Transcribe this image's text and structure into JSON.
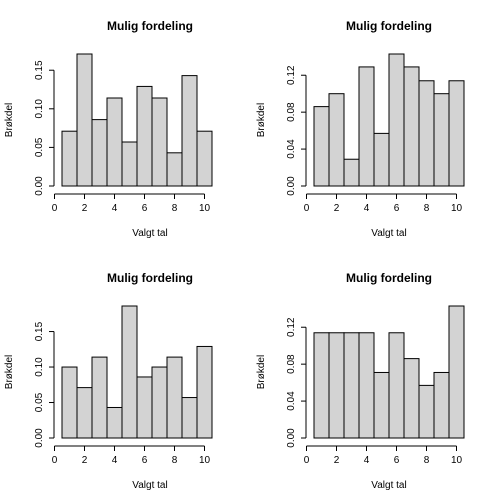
{
  "chart_data": [
    {
      "type": "bar",
      "title": "Mulig fordeling",
      "xlabel": "Valgt tal",
      "ylabel": "Brøkdel",
      "x_bin_edges": [
        0.5,
        1.5,
        2.5,
        3.5,
        4.5,
        5.5,
        6.5,
        7.5,
        8.5,
        9.5,
        10.5
      ],
      "values": [
        0.071,
        0.171,
        0.086,
        0.114,
        0.057,
        0.129,
        0.114,
        0.043,
        0.143,
        0.071
      ],
      "xlim": [
        0,
        10.5
      ],
      "ylim": [
        0,
        0.171
      ],
      "x_ticks": [
        0,
        2,
        4,
        6,
        8,
        10
      ],
      "y_ticks": [
        0,
        0.05,
        0.1,
        0.15
      ],
      "y_tick_labels": [
        "0.00",
        "0.05",
        "0.10",
        "0.15"
      ],
      "bar_fill": "#d3d3d3",
      "grid": false
    },
    {
      "type": "bar",
      "title": "Mulig fordeling",
      "xlabel": "Valgt tal",
      "ylabel": "Brøkdel",
      "x_bin_edges": [
        0.5,
        1.5,
        2.5,
        3.5,
        4.5,
        5.5,
        6.5,
        7.5,
        8.5,
        9.5,
        10.5
      ],
      "values": [
        0.086,
        0.1,
        0.029,
        0.129,
        0.057,
        0.143,
        0.129,
        0.114,
        0.1,
        0.114
      ],
      "xlim": [
        0,
        10.5
      ],
      "ylim": [
        0,
        0.143
      ],
      "x_ticks": [
        0,
        2,
        4,
        6,
        8,
        10
      ],
      "y_ticks": [
        0,
        0.04,
        0.08,
        0.12
      ],
      "y_tick_labels": [
        "0.00",
        "0.04",
        "0.08",
        "0.12"
      ],
      "bar_fill": "#d3d3d3",
      "grid": false
    },
    {
      "type": "bar",
      "title": "Mulig fordeling",
      "xlabel": "Valgt tal",
      "ylabel": "Brøkdel",
      "x_bin_edges": [
        0.5,
        1.5,
        2.5,
        3.5,
        4.5,
        5.5,
        6.5,
        7.5,
        8.5,
        9.5,
        10.5
      ],
      "values": [
        0.1,
        0.071,
        0.114,
        0.043,
        0.186,
        0.086,
        0.1,
        0.114,
        0.057,
        0.129
      ],
      "xlim": [
        0,
        10.5
      ],
      "ylim": [
        0,
        0.186
      ],
      "x_ticks": [
        0,
        2,
        4,
        6,
        8,
        10
      ],
      "y_ticks": [
        0,
        0.05,
        0.1,
        0.15
      ],
      "y_tick_labels": [
        "0.00",
        "0.05",
        "0.10",
        "0.15"
      ],
      "bar_fill": "#d3d3d3",
      "grid": false
    },
    {
      "type": "bar",
      "title": "Mulig fordeling",
      "xlabel": "Valgt tal",
      "ylabel": "Brøkdel",
      "x_bin_edges": [
        0.5,
        1.5,
        2.5,
        3.5,
        4.5,
        5.5,
        6.5,
        7.5,
        8.5,
        9.5,
        10.5
      ],
      "values": [
        0.114,
        0.114,
        0.114,
        0.114,
        0.071,
        0.114,
        0.086,
        0.057,
        0.071,
        0.143
      ],
      "xlim": [
        0,
        10.5
      ],
      "ylim": [
        0,
        0.143
      ],
      "x_ticks": [
        0,
        2,
        4,
        6,
        8,
        10
      ],
      "y_ticks": [
        0,
        0.04,
        0.08,
        0.12
      ],
      "y_tick_labels": [
        "0.00",
        "0.04",
        "0.08",
        "0.12"
      ],
      "bar_fill": "#d3d3d3",
      "grid": false
    }
  ]
}
